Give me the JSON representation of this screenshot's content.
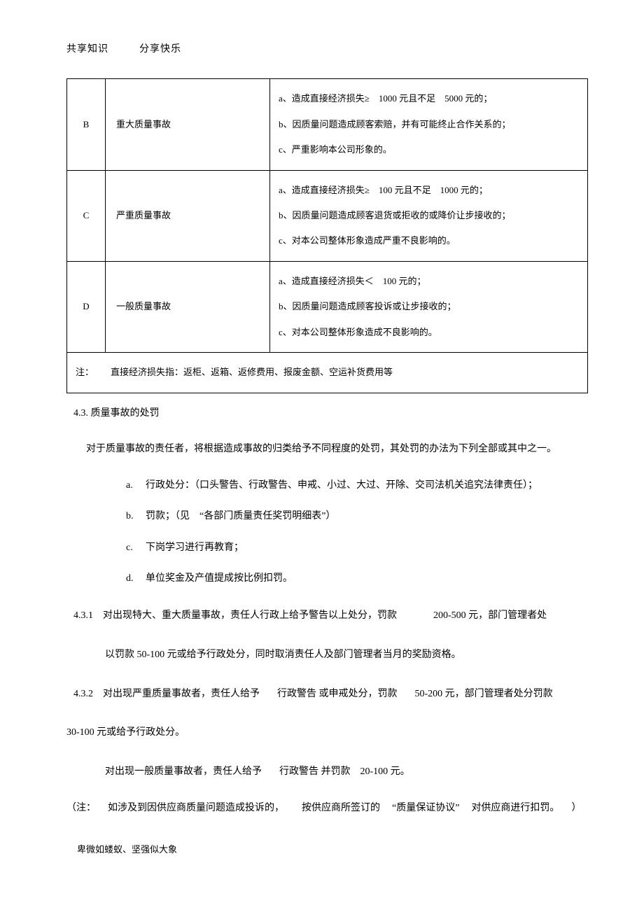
{
  "header": {
    "left": "共享知识",
    "right": "分享快乐"
  },
  "table": {
    "rows": [
      {
        "code": "B",
        "name": "重大质量事故",
        "criteria": [
          "a、造成直接经济损失≥　1000 元且不足　5000 元的；",
          "b、因质量问题造成顾客索赔，并有可能终止合作关系的；",
          "c、严重影响本公司形象的。"
        ]
      },
      {
        "code": "C",
        "name": "严重质量事故",
        "criteria": [
          "a、造成直接经济损失≥　100 元且不足　1000 元的；",
          "b、因质量问题造成顾客退货或拒收的或降价让步接收的；",
          "c、对本公司整体形象造成严重不良影响的。"
        ]
      },
      {
        "code": "D",
        "name": "一般质量事故",
        "criteria": [
          "a、造成直接经济损失＜　100 元的；",
          "b、因质量问题造成顾客投诉或让步接收的；",
          "c、对本公司整体形象造成不良影响的。"
        ]
      }
    ],
    "note": {
      "label": "注：",
      "text": "直接经济损失指：返柜、返箱、返修费用、报废金额、空运补货费用等"
    }
  },
  "section": {
    "title": "4.3. 质量事故的处罚",
    "intro": "对于质量事故的责任者，将根据造成事故的归类给予不同程度的处罚，其处罚的办法为下列全部或其中之一。",
    "items": [
      {
        "marker": "a.",
        "text": "行政处分：（口头警告、行政警告、申戒、小过、大过、开除、交司法机关追究法律责任）；"
      },
      {
        "marker": "b.",
        "text": "罚款；（见　“各部门质量责任奖罚明细表”）"
      },
      {
        "marker": "c.",
        "text": "下岗学习进行再教育；"
      },
      {
        "marker": "d.",
        "text": "单位奖金及产值提成按比例扣罚。"
      }
    ],
    "sub431": {
      "number": "4.3.1",
      "line1_a": "对出现特大、重大质量事故，责任人行政上给予警告以上处分，罚款",
      "line1_b": "200-500 元，部门管理者处",
      "line2": "以罚款 50-100 元或给予行政处分，同时取消责任人及部门管理者当月的奖励资格。"
    },
    "sub432": {
      "number": "4.3.2",
      "line1_a": "对出现严重质量事故者，责任人给予",
      "line1_b": "行政警告 或申戒处分，罚款",
      "line1_c": "50-200 元，部门管理者处分罚款",
      "line2": "30-100 元或给予行政处分。"
    },
    "general": {
      "a": "对出现一般质量事故者，责任人给予",
      "b": "行政警告 并罚款",
      "c": "20-100 元。"
    },
    "note": {
      "a": "（注：",
      "b": "如涉及到因供应商质量问题造成投诉的，",
      "c": "按供应商所签订的",
      "d": "“质量保证协议”",
      "e": "对供应商进行扣罚。",
      "f": "）"
    }
  },
  "footer": "卑微如蝼蚁、坚强似大象"
}
